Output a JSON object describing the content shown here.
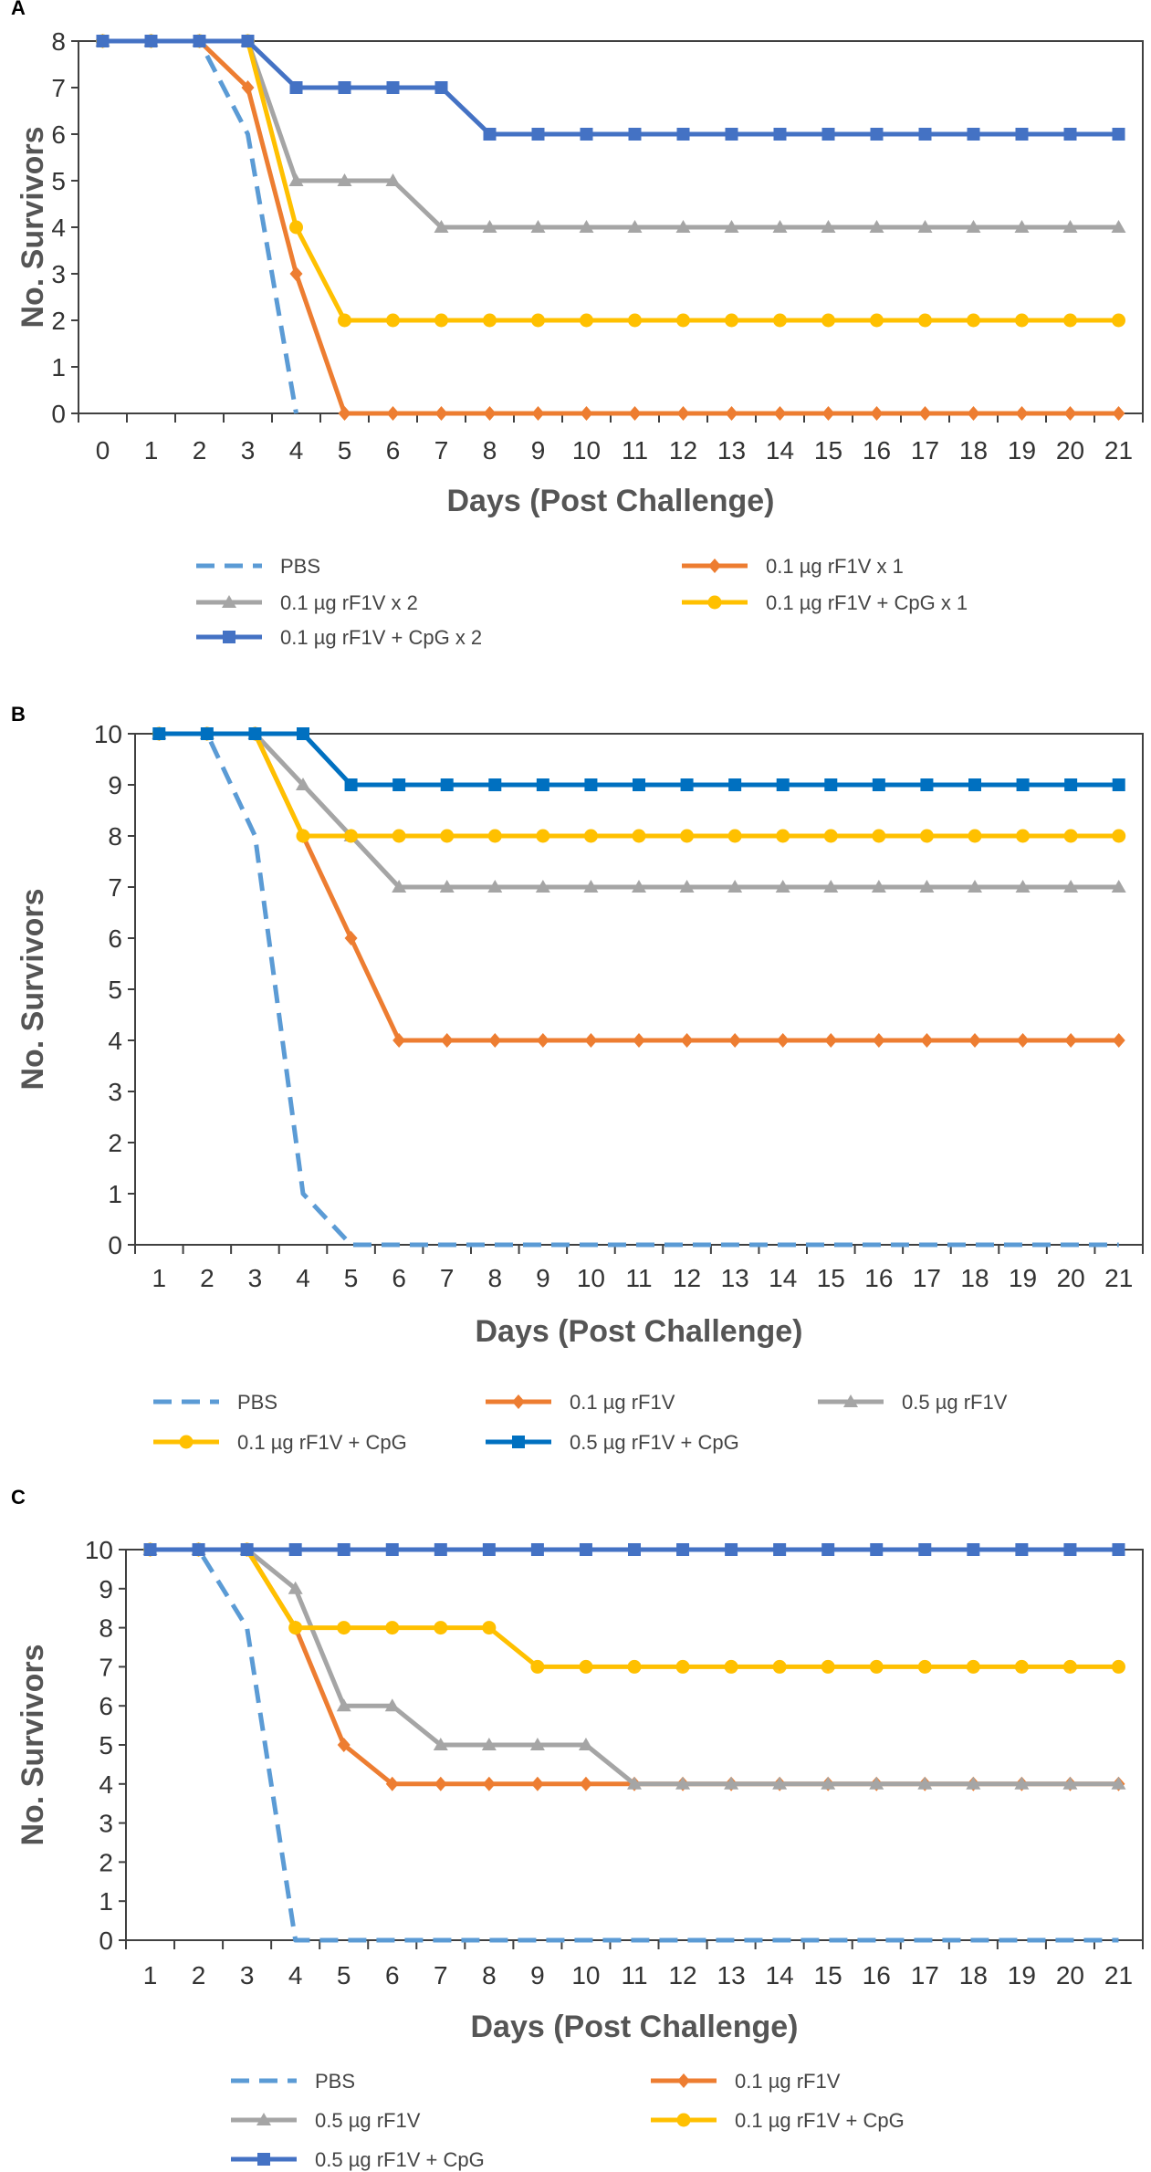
{
  "chart_data": [
    {
      "panel": "A",
      "type": "line",
      "xlabel": "Days (Post Challenge)",
      "ylabel": "No. Survivors",
      "xlim": [
        0,
        21
      ],
      "ylim": [
        0,
        8
      ],
      "x_ticks": [
        0,
        1,
        2,
        3,
        4,
        5,
        6,
        7,
        8,
        9,
        10,
        11,
        12,
        13,
        14,
        15,
        16,
        17,
        18,
        19,
        20,
        21
      ],
      "y_ticks": [
        0,
        1,
        2,
        3,
        4,
        5,
        6,
        7,
        8
      ],
      "legend": "bottom",
      "series": [
        {
          "name": "PBS",
          "color": "#5B9BD5",
          "dashed": true,
          "marker": "none",
          "x": [
            0,
            1,
            2,
            3,
            4
          ],
          "y": [
            8,
            8,
            8,
            6,
            0
          ]
        },
        {
          "name": "0.1 µg rF1V x 1",
          "color": "#ED7D31",
          "dashed": false,
          "marker": "diamond",
          "x": [
            0,
            1,
            2,
            3,
            4,
            5,
            6,
            7,
            8,
            9,
            10,
            11,
            12,
            13,
            14,
            15,
            16,
            17,
            18,
            19,
            20,
            21
          ],
          "y": [
            8,
            8,
            8,
            7,
            3,
            0,
            0,
            0,
            0,
            0,
            0,
            0,
            0,
            0,
            0,
            0,
            0,
            0,
            0,
            0,
            0,
            0
          ]
        },
        {
          "name": "0.1 µg rF1V x 2",
          "color": "#A5A5A5",
          "dashed": false,
          "marker": "triangle",
          "x": [
            0,
            1,
            2,
            3,
            4,
            5,
            6,
            7,
            8,
            9,
            10,
            11,
            12,
            13,
            14,
            15,
            16,
            17,
            18,
            19,
            20,
            21
          ],
          "y": [
            8,
            8,
            8,
            8,
            5,
            5,
            5,
            4,
            4,
            4,
            4,
            4,
            4,
            4,
            4,
            4,
            4,
            4,
            4,
            4,
            4,
            4
          ]
        },
        {
          "name": "0.1 µg rF1V + CpG x 1",
          "color": "#FFC000",
          "dashed": false,
          "marker": "circle",
          "x": [
            0,
            1,
            2,
            3,
            4,
            5,
            6,
            7,
            8,
            9,
            10,
            11,
            12,
            13,
            14,
            15,
            16,
            17,
            18,
            19,
            20,
            21
          ],
          "y": [
            8,
            8,
            8,
            8,
            4,
            2,
            2,
            2,
            2,
            2,
            2,
            2,
            2,
            2,
            2,
            2,
            2,
            2,
            2,
            2,
            2,
            2
          ]
        },
        {
          "name": "0.1 µg rF1V + CpG x 2",
          "color": "#4472C4",
          "dashed": false,
          "marker": "square",
          "x": [
            0,
            1,
            2,
            3,
            4,
            5,
            6,
            7,
            8,
            9,
            10,
            11,
            12,
            13,
            14,
            15,
            16,
            17,
            18,
            19,
            20,
            21
          ],
          "y": [
            8,
            8,
            8,
            8,
            7,
            7,
            7,
            7,
            6,
            6,
            6,
            6,
            6,
            6,
            6,
            6,
            6,
            6,
            6,
            6,
            6,
            6
          ]
        }
      ]
    },
    {
      "panel": "B",
      "type": "line",
      "xlabel": "Days (Post Challenge)",
      "ylabel": "No. Survivors",
      "xlim": [
        1,
        21
      ],
      "ylim": [
        0,
        10
      ],
      "x_ticks": [
        1,
        2,
        3,
        4,
        5,
        6,
        7,
        8,
        9,
        10,
        11,
        12,
        13,
        14,
        15,
        16,
        17,
        18,
        19,
        20,
        21
      ],
      "y_ticks": [
        0,
        1,
        2,
        3,
        4,
        5,
        6,
        7,
        8,
        9,
        10
      ],
      "legend": "bottom",
      "series": [
        {
          "name": "PBS",
          "color": "#5B9BD5",
          "dashed": true,
          "marker": "none",
          "x": [
            1,
            2,
            3,
            4,
            5,
            6,
            7,
            8,
            9,
            10,
            11,
            12,
            13,
            14,
            15,
            16,
            17,
            18,
            19,
            20,
            21
          ],
          "y": [
            10,
            10,
            8,
            1,
            0,
            0,
            0,
            0,
            0,
            0,
            0,
            0,
            0,
            0,
            0,
            0,
            0,
            0,
            0,
            0,
            0
          ]
        },
        {
          "name": "0.1 µg rF1V",
          "color": "#ED7D31",
          "dashed": false,
          "marker": "diamond",
          "x": [
            1,
            2,
            3,
            4,
            5,
            6,
            7,
            8,
            9,
            10,
            11,
            12,
            13,
            14,
            15,
            16,
            17,
            18,
            19,
            20,
            21
          ],
          "y": [
            10,
            10,
            10,
            8,
            6,
            4,
            4,
            4,
            4,
            4,
            4,
            4,
            4,
            4,
            4,
            4,
            4,
            4,
            4,
            4,
            4
          ]
        },
        {
          "name": "0.5 µg rF1V",
          "color": "#A5A5A5",
          "dashed": false,
          "marker": "triangle",
          "x": [
            1,
            2,
            3,
            4,
            5,
            6,
            7,
            8,
            9,
            10,
            11,
            12,
            13,
            14,
            15,
            16,
            17,
            18,
            19,
            20,
            21
          ],
          "y": [
            10,
            10,
            10,
            9,
            8,
            7,
            7,
            7,
            7,
            7,
            7,
            7,
            7,
            7,
            7,
            7,
            7,
            7,
            7,
            7,
            7
          ]
        },
        {
          "name": "0.1 µg rF1V + CpG",
          "color": "#FFC000",
          "dashed": false,
          "marker": "circle",
          "x": [
            1,
            2,
            3,
            4,
            5,
            6,
            7,
            8,
            9,
            10,
            11,
            12,
            13,
            14,
            15,
            16,
            17,
            18,
            19,
            20,
            21
          ],
          "y": [
            10,
            10,
            10,
            8,
            8,
            8,
            8,
            8,
            8,
            8,
            8,
            8,
            8,
            8,
            8,
            8,
            8,
            8,
            8,
            8,
            8
          ]
        },
        {
          "name": "0.5 µg rF1V + CpG",
          "color": "#0070C0",
          "dashed": false,
          "marker": "square",
          "x": [
            1,
            2,
            3,
            4,
            5,
            6,
            7,
            8,
            9,
            10,
            11,
            12,
            13,
            14,
            15,
            16,
            17,
            18,
            19,
            20,
            21
          ],
          "y": [
            10,
            10,
            10,
            10,
            9,
            9,
            9,
            9,
            9,
            9,
            9,
            9,
            9,
            9,
            9,
            9,
            9,
            9,
            9,
            9,
            9
          ]
        }
      ]
    },
    {
      "panel": "C",
      "type": "line",
      "xlabel": "Days (Post Challenge)",
      "ylabel": "No. Survivors",
      "xlim": [
        1,
        21
      ],
      "ylim": [
        0,
        10
      ],
      "x_ticks": [
        1,
        2,
        3,
        4,
        5,
        6,
        7,
        8,
        9,
        10,
        11,
        12,
        13,
        14,
        15,
        16,
        17,
        18,
        19,
        20,
        21
      ],
      "y_ticks": [
        0,
        1,
        2,
        3,
        4,
        5,
        6,
        7,
        8,
        9,
        10
      ],
      "legend": "bottom",
      "series": [
        {
          "name": "PBS",
          "color": "#5B9BD5",
          "dashed": true,
          "marker": "none",
          "x": [
            1,
            2,
            3,
            4,
            5,
            6,
            7,
            8,
            9,
            10,
            11,
            12,
            13,
            14,
            15,
            16,
            17,
            18,
            19,
            20,
            21
          ],
          "y": [
            10,
            10,
            8,
            0,
            0,
            0,
            0,
            0,
            0,
            0,
            0,
            0,
            0,
            0,
            0,
            0,
            0,
            0,
            0,
            0,
            0
          ]
        },
        {
          "name": "0.1 µg rF1V",
          "color": "#ED7D31",
          "dashed": false,
          "marker": "diamond",
          "x": [
            1,
            2,
            3,
            4,
            5,
            6,
            7,
            8,
            9,
            10,
            11,
            12,
            13,
            14,
            15,
            16,
            17,
            18,
            19,
            20,
            21
          ],
          "y": [
            10,
            10,
            10,
            8,
            5,
            4,
            4,
            4,
            4,
            4,
            4,
            4,
            4,
            4,
            4,
            4,
            4,
            4,
            4,
            4,
            4
          ]
        },
        {
          "name": "0.5 µg rF1V",
          "color": "#A5A5A5",
          "dashed": false,
          "marker": "triangle",
          "x": [
            1,
            2,
            3,
            4,
            5,
            6,
            7,
            8,
            9,
            10,
            11,
            12,
            13,
            14,
            15,
            16,
            17,
            18,
            19,
            20,
            21
          ],
          "y": [
            10,
            10,
            10,
            9,
            6,
            6,
            5,
            5,
            5,
            5,
            4,
            4,
            4,
            4,
            4,
            4,
            4,
            4,
            4,
            4,
            4
          ]
        },
        {
          "name": "0.1 µg rF1V + CpG",
          "color": "#FFC000",
          "dashed": false,
          "marker": "circle",
          "x": [
            1,
            2,
            3,
            4,
            5,
            6,
            7,
            8,
            9,
            10,
            11,
            12,
            13,
            14,
            15,
            16,
            17,
            18,
            19,
            20,
            21
          ],
          "y": [
            10,
            10,
            10,
            8,
            8,
            8,
            8,
            8,
            7,
            7,
            7,
            7,
            7,
            7,
            7,
            7,
            7,
            7,
            7,
            7,
            7
          ]
        },
        {
          "name": "0.5 µg rF1V + CpG",
          "color": "#4472C4",
          "dashed": false,
          "marker": "square",
          "x": [
            1,
            2,
            3,
            4,
            5,
            6,
            7,
            8,
            9,
            10,
            11,
            12,
            13,
            14,
            15,
            16,
            17,
            18,
            19,
            20,
            21
          ],
          "y": [
            10,
            10,
            10,
            10,
            10,
            10,
            10,
            10,
            10,
            10,
            10,
            10,
            10,
            10,
            10,
            10,
            10,
            10,
            10,
            10,
            10
          ]
        }
      ]
    }
  ]
}
